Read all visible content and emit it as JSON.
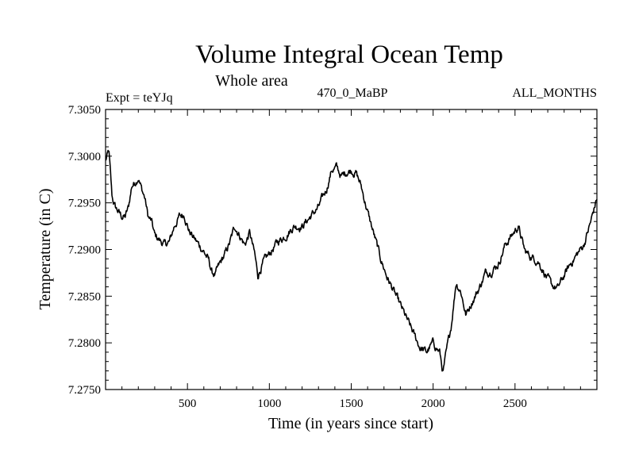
{
  "chart_data": {
    "type": "line",
    "title": "Volume Integral Ocean Temp",
    "subtitle": "Whole area",
    "left_label": "Expt = teYJq",
    "center_label": "470_0_MaBP",
    "right_label": "ALL_MONTHS",
    "xlabel": "Time (in years since start)",
    "ylabel": "Temperature (in C)",
    "xlim": [
      0,
      3000
    ],
    "ylim": [
      7.275,
      7.305
    ],
    "x_ticks": [
      500,
      1000,
      1500,
      2000,
      2500
    ],
    "x_tick_labels": [
      "500",
      "1000",
      "1500",
      "2000",
      "2500"
    ],
    "y_ticks": [
      7.275,
      7.28,
      7.285,
      7.29,
      7.295,
      7.3,
      7.305
    ],
    "y_tick_labels": [
      "7.2750",
      "7.2800",
      "7.2850",
      "7.2900",
      "7.2950",
      "7.3000",
      "7.3050"
    ],
    "line_color": "#000000",
    "series": [
      {
        "name": "Temperature",
        "x": [
          0,
          20,
          40,
          60,
          80,
          100,
          120,
          140,
          160,
          180,
          200,
          220,
          240,
          260,
          280,
          300,
          330,
          360,
          390,
          420,
          450,
          480,
          510,
          540,
          570,
          600,
          630,
          650,
          670,
          700,
          730,
          760,
          790,
          820,
          850,
          880,
          910,
          930,
          960,
          1000,
          1050,
          1100,
          1150,
          1200,
          1250,
          1300,
          1350,
          1380,
          1410,
          1440,
          1470,
          1500,
          1530,
          1560,
          1600,
          1640,
          1680,
          1720,
          1760,
          1800,
          1840,
          1880,
          1920,
          1960,
          2000,
          2040,
          2060,
          2080,
          2110,
          2140,
          2170,
          2200,
          2240,
          2280,
          2320,
          2360,
          2400,
          2440,
          2480,
          2520,
          2560,
          2600,
          2640,
          2680,
          2720,
          2760,
          2800,
          2840,
          2880,
          2920,
          2960,
          3000
        ],
        "y": [
          7.2995,
          7.3005,
          7.2955,
          7.2945,
          7.294,
          7.2935,
          7.2935,
          7.2945,
          7.2968,
          7.2972,
          7.2978,
          7.2965,
          7.2955,
          7.2935,
          7.293,
          7.2915,
          7.291,
          7.2905,
          7.2908,
          7.2925,
          7.2935,
          7.2938,
          7.292,
          7.2912,
          7.2905,
          7.2898,
          7.2888,
          7.2875,
          7.2873,
          7.2885,
          7.2895,
          7.2908,
          7.2925,
          7.2915,
          7.2905,
          7.2918,
          7.2895,
          7.2872,
          7.2885,
          7.2895,
          7.2908,
          7.2915,
          7.2925,
          7.2925,
          7.2935,
          7.2945,
          7.2965,
          7.2985,
          7.2988,
          7.2978,
          7.2983,
          7.2985,
          7.2982,
          7.2968,
          7.294,
          7.2915,
          7.289,
          7.287,
          7.2855,
          7.284,
          7.2825,
          7.281,
          7.2795,
          7.279,
          7.28,
          7.279,
          7.2768,
          7.2788,
          7.2818,
          7.2865,
          7.2855,
          7.283,
          7.2845,
          7.2858,
          7.2875,
          7.2878,
          7.2885,
          7.2905,
          7.2915,
          7.2925,
          7.2898,
          7.2892,
          7.2888,
          7.2875,
          7.2862,
          7.2858,
          7.2872,
          7.2885,
          7.2895,
          7.2905,
          7.2928,
          7.2955
        ]
      }
    ]
  }
}
